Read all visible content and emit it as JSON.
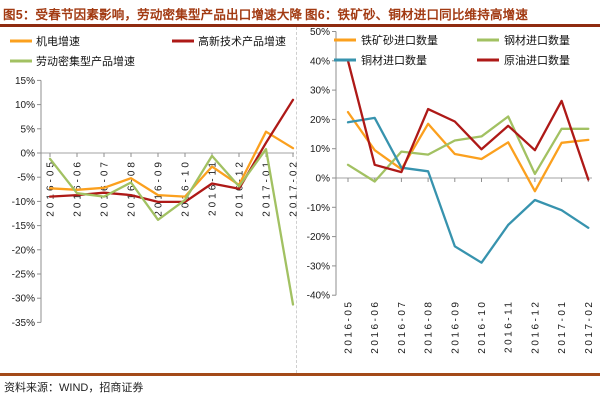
{
  "figures": [
    {
      "id": "fig5",
      "title": "图5：受春节因素影响，劳动密集型产品出口增速大降"
    },
    {
      "id": "fig6",
      "title": "图6：铁矿砂、铜材进口同比维持高增速"
    }
  ],
  "source_note": "资料来源：WIND，招商证券",
  "colors": {
    "title_text": "#A23A12",
    "top_rule": "#8F2B10",
    "bottom_rule": "#A34A18",
    "divider_dash": "#CFCFCF",
    "zero_gridline": "#C2C2C2",
    "axis": "#8F8F8F",
    "axis_text": "#1a1a1a",
    "series_orange": "#FBA01E",
    "series_dark_red": "#AE1917",
    "series_green": "#A2C162",
    "series_teal": "#3793AE"
  },
  "chart_data": [
    {
      "type": "line",
      "title": "图5：受春节因素影响，劳动密集型产品出口增速大降",
      "categories": [
        "2016-05",
        "2016-06",
        "2016-07",
        "2016-08",
        "2016-09",
        "2016-10",
        "2016-11",
        "2016-12",
        "2017-01",
        "2017-02"
      ],
      "series": [
        {
          "name": "机电增速",
          "slug": "electromechanical-export-growth",
          "color": "#FBA01E",
          "values": [
            -7.3,
            -7.6,
            -7.2,
            -5.2,
            -8.7,
            -9.0,
            -2.8,
            -6.6,
            4.4,
            1.0
          ]
        },
        {
          "name": "高新技术产品增速",
          "slug": "high-tech-export-growth",
          "color": "#AE1917",
          "values": [
            -9.0,
            -8.7,
            -8.2,
            -8.7,
            -10.1,
            -10.1,
            -6.3,
            -7.4,
            2.1,
            11.0
          ]
        },
        {
          "name": "劳动密集型产品增速",
          "slug": "labor-intensive-export-growth",
          "color": "#A2C162",
          "values": [
            -1.2,
            -8.3,
            -9.0,
            -6.1,
            -13.8,
            -9.7,
            -0.6,
            -6.9,
            0.8,
            -31.3
          ]
        }
      ],
      "ylabel_format": "percent",
      "ylim": [
        -35,
        15
      ],
      "ytick_step": 5,
      "grid": "zero-line-only",
      "legend_position": "top-left",
      "x_axis_labels": "at-zero-line-rotated-90"
    },
    {
      "type": "line",
      "title": "图6：铁矿砂、铜材进口同比维持高增速",
      "categories": [
        "2016-05",
        "2016-06",
        "2016-07",
        "2016-08",
        "2016-09",
        "2016-10",
        "2016-11",
        "2016-12",
        "2017-01",
        "2017-02"
      ],
      "series": [
        {
          "name": "铁矿砂进口数量",
          "slug": "iron-ore-imports",
          "color": "#FBA01E",
          "values": [
            22.5,
            9.5,
            3.0,
            18.5,
            8.2,
            6.5,
            12.2,
            -4.5,
            12.0,
            13.0
          ]
        },
        {
          "name": "钢材进口数量",
          "slug": "steel-imports",
          "color": "#A2C162",
          "values": [
            4.5,
            -1.2,
            9.0,
            8.0,
            12.8,
            14.2,
            21.0,
            1.4,
            16.8,
            16.8
          ]
        },
        {
          "name": "铜材进口数量",
          "slug": "copper-imports",
          "color": "#3793AE",
          "values": [
            19.0,
            20.5,
            3.5,
            2.3,
            -23.3,
            -28.9,
            -16.0,
            -7.5,
            -11.0,
            -17.0
          ]
        },
        {
          "name": "原油进口数量",
          "slug": "crude-oil-imports",
          "color": "#AE1917",
          "values": [
            40.0,
            4.5,
            2.0,
            23.5,
            19.3,
            9.8,
            17.8,
            9.5,
            26.3,
            -0.5
          ]
        }
      ],
      "ylabel_format": "percent",
      "ylim": [
        -40,
        50
      ],
      "ytick_step": 10,
      "grid": "zero-line-only",
      "legend_position": "top-left",
      "x_axis_labels": "bottom-rotated-90"
    }
  ]
}
